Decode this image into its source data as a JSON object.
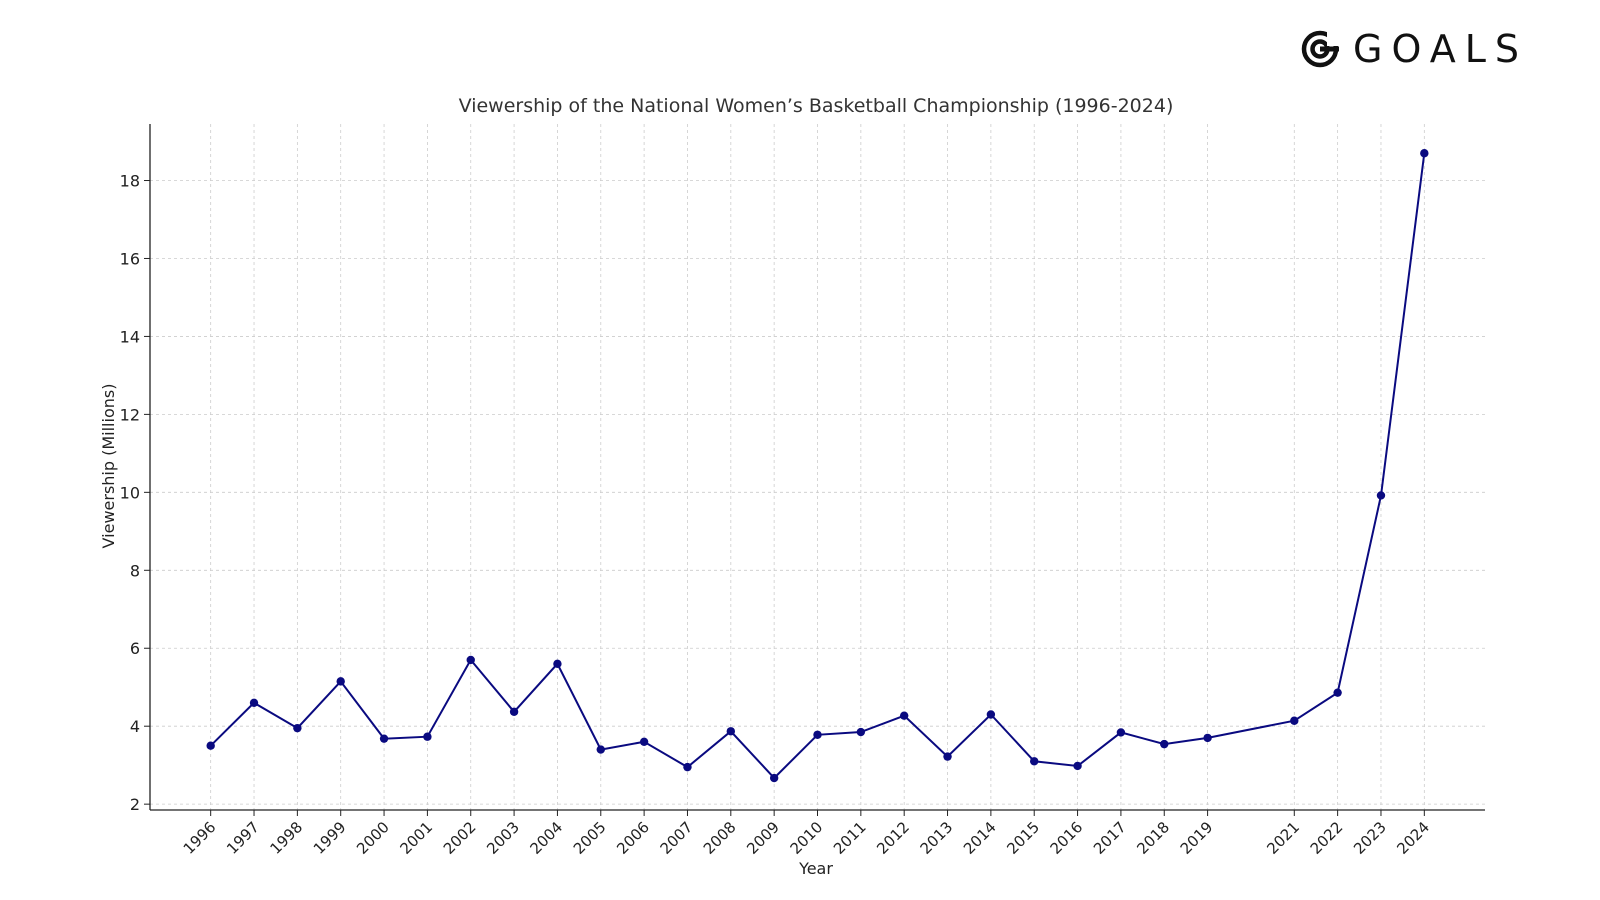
{
  "brand": {
    "name": "GOALS",
    "logo_icon": "goals-logo-icon"
  },
  "chart_data": {
    "type": "line",
    "title": "Viewership of the National Women’s Basketball Championship (1996-2024)",
    "xlabel": "Year",
    "ylabel": "Viewership (Millions)",
    "x": [
      1996,
      1997,
      1998,
      1999,
      2000,
      2001,
      2002,
      2003,
      2004,
      2005,
      2006,
      2007,
      2008,
      2009,
      2010,
      2011,
      2012,
      2013,
      2014,
      2015,
      2016,
      2017,
      2018,
      2019,
      2021,
      2022,
      2023,
      2024
    ],
    "series": [
      {
        "values": [
          3.5,
          4.6,
          3.95,
          5.15,
          3.68,
          3.73,
          5.7,
          4.37,
          5.6,
          3.4,
          3.6,
          2.95,
          3.87,
          2.67,
          3.78,
          3.85,
          4.27,
          3.22,
          4.3,
          3.1,
          2.98,
          3.84,
          3.54,
          3.7,
          4.14,
          4.86,
          9.92,
          18.7
        ],
        "color": "#0a0a80"
      }
    ],
    "xticks": [
      "1996",
      "1997",
      "1998",
      "1999",
      "2000",
      "2001",
      "2002",
      "2003",
      "2004",
      "2005",
      "2006",
      "2007",
      "2008",
      "2009",
      "2010",
      "2011",
      "2012",
      "2013",
      "2014",
      "2015",
      "2016",
      "2017",
      "2018",
      "2019",
      "2021",
      "2022",
      "2023",
      "2024"
    ],
    "yticks": [
      2,
      4,
      6,
      8,
      10,
      12,
      14,
      16,
      18
    ],
    "ylim": [
      1.85,
      19.45
    ],
    "xlim": [
      1994.6,
      2025.4
    ],
    "grid": true,
    "marker": "circle",
    "line_color": "#0a0a80",
    "grid_color": "#cccccc"
  }
}
